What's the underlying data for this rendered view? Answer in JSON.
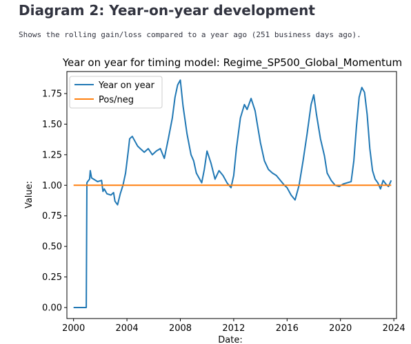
{
  "page": {
    "heading": "Diagram 2: Year-on-year development",
    "description": "Shows the rolling gain/loss compared to a year ago (251 business days ago)."
  },
  "chart_data": {
    "type": "line",
    "title": "Year on year for timing model: Regime_SP500_Global_Momentum",
    "xlabel": "Date:",
    "ylabel": "Value:",
    "xlim": [
      1999.5,
      2024.2
    ],
    "ylim": [
      -0.09,
      1.93
    ],
    "x_ticks": [
      2000,
      2004,
      2008,
      2012,
      2016,
      2020,
      2024
    ],
    "y_ticks": [
      0.0,
      0.25,
      0.5,
      0.75,
      1.0,
      1.25,
      1.5,
      1.75
    ],
    "y_tick_labels": [
      "0.00",
      "0.25",
      "0.50",
      "0.75",
      "1.00",
      "1.25",
      "1.50",
      "1.75"
    ],
    "legend_position": "upper-left",
    "grid": false,
    "series": [
      {
        "name": "Year on year",
        "color": "#1f77b4",
        "x": [
          2000.0,
          2000.5,
          2000.95,
          2001.0,
          2001.05,
          2001.2,
          2001.25,
          2001.35,
          2001.5,
          2001.8,
          2002.1,
          2002.2,
          2002.3,
          2002.5,
          2002.8,
          2003.0,
          2003.1,
          2003.3,
          2003.5,
          2003.7,
          2003.9,
          2004.1,
          2004.2,
          2004.4,
          2004.6,
          2004.8,
          2005.0,
          2005.3,
          2005.6,
          2005.9,
          2006.2,
          2006.5,
          2006.8,
          2007.1,
          2007.4,
          2007.6,
          2007.8,
          2008.0,
          2008.2,
          2008.5,
          2008.8,
          2009.0,
          2009.2,
          2009.4,
          2009.6,
          2009.8,
          2010.0,
          2010.3,
          2010.6,
          2010.9,
          2011.2,
          2011.5,
          2011.8,
          2012.0,
          2012.2,
          2012.5,
          2012.8,
          2013.0,
          2013.3,
          2013.6,
          2013.8,
          2014.0,
          2014.3,
          2014.6,
          2014.9,
          2015.2,
          2015.5,
          2015.8,
          2016.0,
          2016.3,
          2016.6,
          2016.9,
          2017.2,
          2017.5,
          2017.8,
          2018.0,
          2018.2,
          2018.5,
          2018.8,
          2019.0,
          2019.3,
          2019.6,
          2019.9,
          2020.2,
          2020.5,
          2020.8,
          2021.0,
          2021.2,
          2021.4,
          2021.6,
          2021.8,
          2022.0,
          2022.2,
          2022.4,
          2022.6,
          2022.8,
          2023.0,
          2023.2,
          2023.4,
          2023.6,
          2023.8
        ],
        "values": [
          0.0,
          0.0,
          0.0,
          1.02,
          1.03,
          1.05,
          1.12,
          1.06,
          1.05,
          1.03,
          1.04,
          0.95,
          0.97,
          0.93,
          0.92,
          0.94,
          0.87,
          0.84,
          0.93,
          1.0,
          1.1,
          1.28,
          1.38,
          1.4,
          1.36,
          1.32,
          1.3,
          1.27,
          1.3,
          1.25,
          1.28,
          1.3,
          1.22,
          1.38,
          1.55,
          1.72,
          1.82,
          1.86,
          1.65,
          1.42,
          1.25,
          1.2,
          1.1,
          1.06,
          1.02,
          1.13,
          1.28,
          1.18,
          1.05,
          1.12,
          1.08,
          1.02,
          0.98,
          1.08,
          1.3,
          1.55,
          1.66,
          1.62,
          1.71,
          1.61,
          1.48,
          1.35,
          1.2,
          1.13,
          1.1,
          1.08,
          1.04,
          1.0,
          0.98,
          0.92,
          0.88,
          1.0,
          1.2,
          1.42,
          1.66,
          1.74,
          1.58,
          1.38,
          1.24,
          1.1,
          1.04,
          1.0,
          0.99,
          1.01,
          1.02,
          1.03,
          1.2,
          1.48,
          1.72,
          1.8,
          1.76,
          1.58,
          1.3,
          1.12,
          1.05,
          1.02,
          0.97,
          1.04,
          1.01,
          0.99,
          1.04
        ]
      },
      {
        "name": "Pos/neg",
        "color": "#ff7f0e",
        "x": [
          2000.0,
          2023.8
        ],
        "values": [
          1.0,
          1.0
        ]
      }
    ]
  }
}
